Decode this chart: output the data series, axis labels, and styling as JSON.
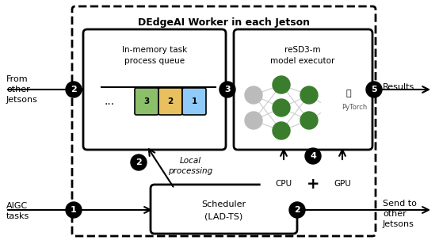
{
  "title": "DEdgeAI Worker in each Jetson",
  "bg_color": "#ffffff",
  "nn_green": "#3A7D2C",
  "nn_gray": "#BBBBBB",
  "item_colors": [
    "#8BBF6A",
    "#E8C060",
    "#90CAF9"
  ],
  "item_labels": [
    "3",
    "2",
    "1"
  ]
}
